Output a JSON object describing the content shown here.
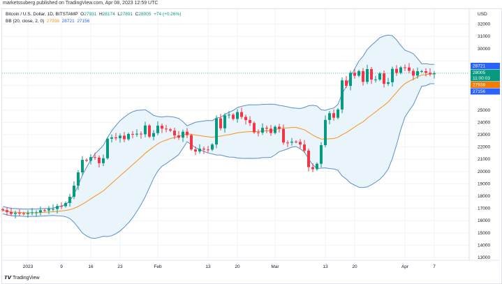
{
  "publisher": "marketssuberg published on TradingView.com, Apr 08, 2023 12:59 UTC",
  "legend": {
    "symbol": "Bitcoin / U.S. Dollar, 1D, BITSTAMP",
    "o_label": "O",
    "o": "27931",
    "h_label": "H",
    "h": "28174",
    "l_label": "L",
    "l": "27891",
    "c_label": "C",
    "c": "28005",
    "change": "+74 (+0.26%)",
    "bb": "BB (20, close, 2, 0)",
    "bb_mid": "27938",
    "bb_up": "28721",
    "bb_low": "27156"
  },
  "footer": {
    "logo": "TradingView"
  },
  "chart_data": {
    "type": "candlestick",
    "currency": "USD",
    "start_date": "2022-12-26",
    "closes": [
      16850,
      16700,
      16550,
      16630,
      16600,
      16540,
      16610,
      16670,
      16670,
      16850,
      16830,
      16950,
      16950,
      17190,
      17180,
      17440,
      17940,
      18850,
      19930,
      20950,
      20880,
      21170,
      21130,
      20680,
      21080,
      22670,
      22780,
      22710,
      22920,
      22630,
      23060,
      23010,
      23080,
      23030,
      23750,
      22840,
      23130,
      23730,
      23490,
      23430,
      23330,
      22940,
      22760,
      23240,
      22960,
      21800,
      21630,
      21860,
      21790,
      21780,
      22200,
      24330,
      23520,
      24570,
      24630,
      24280,
      24840,
      24450,
      24190,
      23950,
      23190,
      23160,
      23560,
      23490,
      23140,
      23650,
      23470,
      22360,
      22350,
      22430,
      22410,
      22200,
      21700,
      20360,
      20190,
      20630,
      22150,
      24200,
      24750,
      24380,
      25050,
      27420,
      26970,
      28040,
      27800,
      28180,
      27300,
      28340,
      27490,
      27490,
      27990,
      27140,
      27270,
      28360,
      28030,
      28480,
      28470,
      28200,
      27810,
      28170,
      28170,
      28040,
      27930,
      28005
    ],
    "indicator": "Bollinger Bands (20, 2)",
    "ylim": [
      13000,
      32000
    ],
    "yticks": [
      13000,
      14000,
      15000,
      16000,
      17000,
      18000,
      19000,
      20000,
      21000,
      22000,
      23000,
      24000,
      25000,
      26000,
      27000,
      28000,
      29000,
      30000,
      31000,
      32000
    ],
    "xticks": [
      {
        "day": 6,
        "label": "2023"
      },
      {
        "day": 14,
        "label": "9"
      },
      {
        "day": 21,
        "label": "16"
      },
      {
        "day": 28,
        "label": "23"
      },
      {
        "day": 37,
        "label": "Feb"
      },
      {
        "day": 49,
        "label": "13"
      },
      {
        "day": 56,
        "label": "20"
      },
      {
        "day": 65,
        "label": "Mar"
      },
      {
        "day": 77,
        "label": "13"
      },
      {
        "day": 84,
        "label": "20"
      },
      {
        "day": 96,
        "label": "Apr"
      },
      {
        "day": 103,
        "label": "7"
      }
    ],
    "price_labels": {
      "upper": "28721",
      "last": "28005",
      "countdown": "11:00:03",
      "basis": "27938",
      "lower": "27156"
    },
    "colors": {
      "up": "#089981",
      "down": "#f23645",
      "band": "#5b8fc7",
      "basis": "#f7931a",
      "fill": "#eaf4fb"
    }
  }
}
